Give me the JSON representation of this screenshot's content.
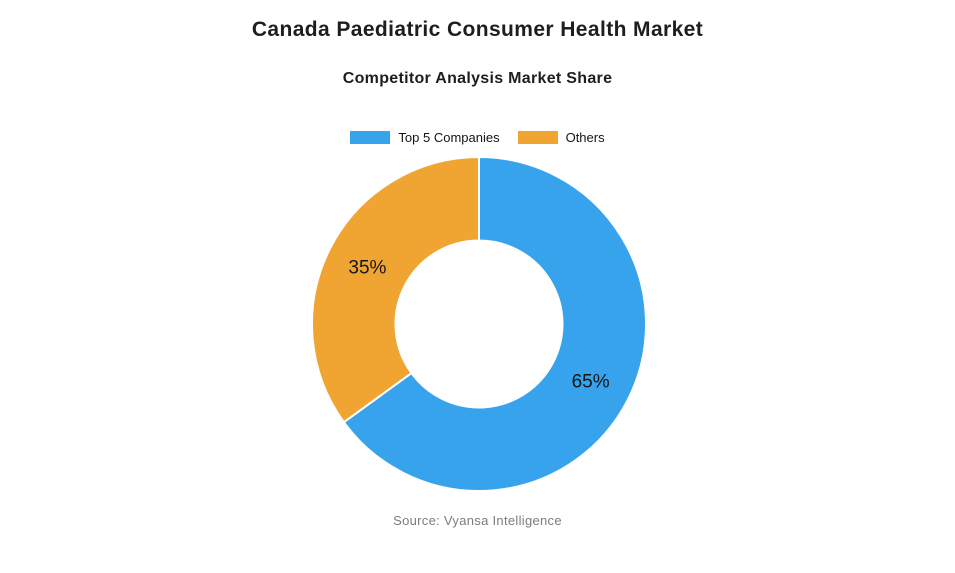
{
  "header": {
    "title": "Canada Paediatric Consumer Health Market",
    "subtitle": "Competitor Analysis Market Share"
  },
  "legend": {
    "items": [
      {
        "label": "Top 5 Companies",
        "color": "#36A3EC"
      },
      {
        "label": "Others",
        "color": "#F0A532"
      }
    ]
  },
  "chart_data": {
    "type": "pie",
    "subtype": "doughnut",
    "title": "Canada Paediatric Consumer Health Market",
    "subtitle": "Competitor Analysis Market Share",
    "categories": [
      "Top 5 Companies",
      "Others"
    ],
    "values": [
      65,
      35
    ],
    "data_labels": [
      "65%",
      "35%"
    ],
    "colors": [
      "#36A3EC",
      "#F0A532"
    ],
    "border_color": "#FFFFFF",
    "label_color": "#161616",
    "start_angle_deg": 0,
    "direction": "clockwise",
    "cutout_ratio": 0.5,
    "legend_position": "top"
  },
  "footer": {
    "source": "Source: Vyansa Intelligence"
  }
}
